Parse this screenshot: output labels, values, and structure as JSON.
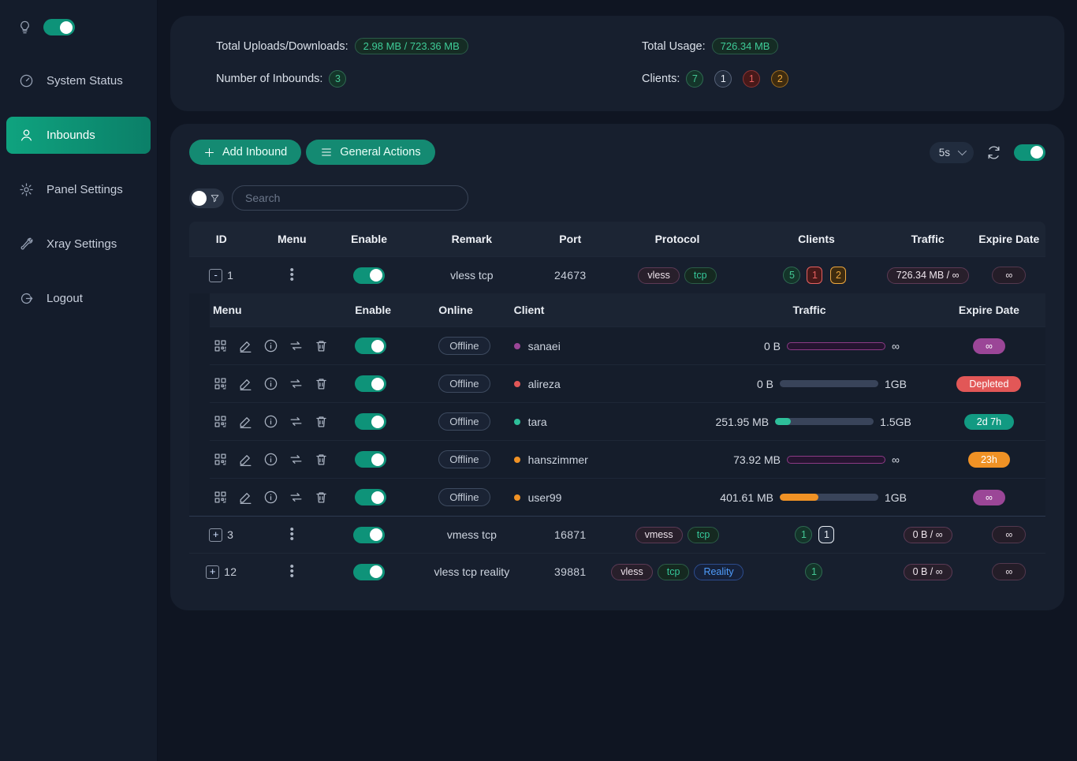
{
  "sidebar": {
    "theme_toggle": {
      "on": true,
      "icon": "lightbulb-icon"
    },
    "items": [
      {
        "label": "System Status",
        "icon": "dashboard-icon",
        "active": false
      },
      {
        "label": "Inbounds",
        "icon": "user-icon",
        "active": true
      },
      {
        "label": "Panel Settings",
        "icon": "gear-icon",
        "active": false
      },
      {
        "label": "Xray Settings",
        "icon": "wrench-icon",
        "active": false
      },
      {
        "label": "Logout",
        "icon": "logout-icon",
        "active": false
      }
    ]
  },
  "stats": {
    "uploads_label": "Total Uploads/Downloads:",
    "uploads_value": "2.98 MB / 723.36 MB",
    "inbounds_label": "Number of Inbounds:",
    "inbounds_value": "3",
    "usage_label": "Total Usage:",
    "usage_value": "726.34 MB",
    "clients_label": "Clients:",
    "client_badges": [
      {
        "value": "7",
        "variant": "green"
      },
      {
        "value": "1",
        "variant": "gray"
      },
      {
        "value": "1",
        "variant": "red"
      },
      {
        "value": "2",
        "variant": "orange"
      }
    ]
  },
  "toolbar": {
    "add_inbound_label": "Add Inbound",
    "general_actions_label": "General Actions",
    "refresh_interval": "5s",
    "auto_refresh_on": true
  },
  "search": {
    "placeholder": "Search"
  },
  "table": {
    "headers": [
      "ID",
      "Menu",
      "Enable",
      "Remark",
      "Port",
      "Protocol",
      "Clients",
      "Traffic",
      "Expire Date"
    ],
    "inner_headers": [
      "Menu",
      "Enable",
      "Online",
      "Client",
      "Traffic",
      "Expire Date"
    ]
  },
  "inbounds": [
    {
      "id": "1",
      "expand_symbol": "-",
      "enabled": true,
      "remark": "vless tcp",
      "port": "24673",
      "protocols": [
        {
          "label": "vless"
        },
        {
          "label": "tcp"
        }
      ],
      "client_badges": [
        {
          "value": "5",
          "variant": "green"
        },
        {
          "value": "1",
          "variant": "red"
        },
        {
          "value": "2",
          "variant": "orange"
        }
      ],
      "traffic": "726.34 MB / ∞",
      "expire": "∞"
    },
    {
      "id": "3",
      "expand_symbol": "+",
      "enabled": true,
      "remark": "vmess tcp",
      "port": "16871",
      "protocols": [
        {
          "label": "vmess"
        },
        {
          "label": "tcp"
        }
      ],
      "client_badges": [
        {
          "value": "1",
          "variant": "green"
        },
        {
          "value": "1",
          "variant": "gray"
        }
      ],
      "traffic": "0 B / ∞",
      "expire": "∞"
    },
    {
      "id": "12",
      "expand_symbol": "+",
      "enabled": true,
      "remark": "vless tcp reality",
      "port": "39881",
      "protocols": [
        {
          "label": "vless"
        },
        {
          "label": "tcp"
        },
        {
          "label": "Reality"
        }
      ],
      "client_badges": [
        {
          "value": "1",
          "variant": "green"
        }
      ],
      "traffic": "0 B / ∞",
      "expire": "∞"
    }
  ],
  "clients": [
    {
      "name": "sanaei",
      "dot_color": "#9b4697",
      "status": "Offline",
      "enabled": true,
      "used": "0 B",
      "cap": "∞",
      "percent": 0,
      "unlimited": true,
      "expire": "∞",
      "expire_variant": "purple"
    },
    {
      "name": "alireza",
      "dot_color": "#e25757",
      "status": "Offline",
      "enabled": true,
      "used": "0 B",
      "cap": "1GB",
      "percent": 0,
      "unlimited": false,
      "expire": "Depleted",
      "expire_variant": "red"
    },
    {
      "name": "tara",
      "dot_color": "#2ebf9a",
      "status": "Offline",
      "enabled": true,
      "used": "251.95 MB",
      "cap": "1.5GB",
      "percent": 16,
      "unlimited": false,
      "expire": "2d 7h",
      "expire_variant": "teal"
    },
    {
      "name": "hanszimmer",
      "dot_color": "#f09225",
      "status": "Offline",
      "enabled": true,
      "used": "73.92 MB",
      "cap": "∞",
      "percent": 0,
      "unlimited": true,
      "expire": "23h",
      "expire_variant": "orange"
    },
    {
      "name": "user99",
      "dot_color": "#f09225",
      "status": "Offline",
      "enabled": true,
      "used": "401.61 MB",
      "cap": "1GB",
      "percent": 39,
      "unlimited": false,
      "expire": "∞",
      "expire_variant": "purple"
    }
  ],
  "colors": {
    "accent_teal": "#148a72",
    "badge_green": "#44c795",
    "badge_red": "#e66060",
    "badge_orange": "#eca63e",
    "expire_purple": "#9b4697",
    "expire_red": "#e25757",
    "expire_teal": "#129a82",
    "expire_orange": "#f09225"
  }
}
